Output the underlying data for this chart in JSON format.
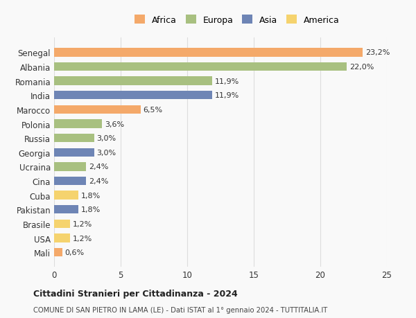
{
  "countries": [
    "Senegal",
    "Albania",
    "Romania",
    "India",
    "Marocco",
    "Polonia",
    "Russia",
    "Georgia",
    "Ucraina",
    "Cina",
    "Cuba",
    "Pakistan",
    "Brasile",
    "USA",
    "Mali"
  ],
  "values": [
    23.2,
    22.0,
    11.9,
    11.9,
    6.5,
    3.6,
    3.0,
    3.0,
    2.4,
    2.4,
    1.8,
    1.8,
    1.2,
    1.2,
    0.6
  ],
  "labels": [
    "23,2%",
    "22,0%",
    "11,9%",
    "11,9%",
    "6,5%",
    "3,6%",
    "3,0%",
    "3,0%",
    "2,4%",
    "2,4%",
    "1,8%",
    "1,8%",
    "1,2%",
    "1,2%",
    "0,6%"
  ],
  "colors": [
    "#F4A96A",
    "#A8C080",
    "#A8C080",
    "#6E85B5",
    "#F4A96A",
    "#A8C080",
    "#A8C080",
    "#6E85B5",
    "#A8C080",
    "#6E85B5",
    "#F5D36E",
    "#6E85B5",
    "#F5D36E",
    "#F5D36E",
    "#F4A96A"
  ],
  "continents": [
    "Africa",
    "Europa",
    "Asia",
    "America"
  ],
  "legend_colors": [
    "#F4A96A",
    "#A8C080",
    "#6E85B5",
    "#F5D36E"
  ],
  "title": "Cittadini Stranieri per Cittadinanza - 2024",
  "subtitle": "COMUNE DI SAN PIETRO IN LAMA (LE) - Dati ISTAT al 1° gennaio 2024 - TUTTITALIA.IT",
  "xlim": [
    0,
    25
  ],
  "xticks": [
    0,
    5,
    10,
    15,
    20,
    25
  ],
  "bg_color": "#f9f9f9",
  "grid_color": "#dddddd"
}
